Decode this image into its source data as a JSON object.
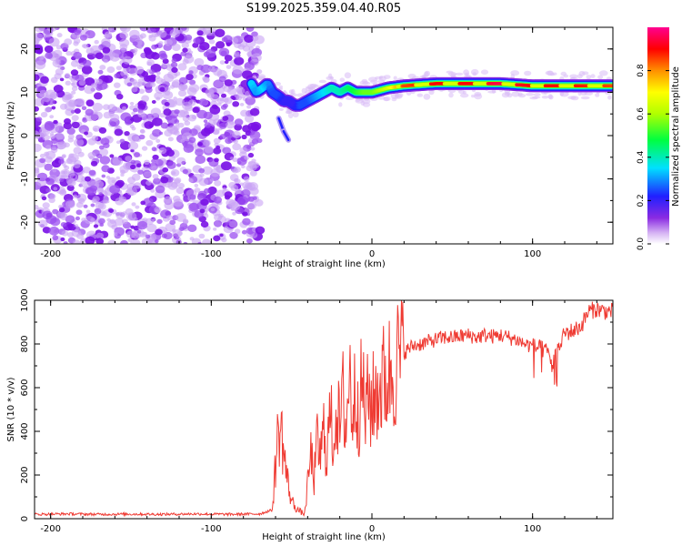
{
  "title": "S199.2025.359.04.40.R05",
  "colors": {
    "snr_line": "#ef3b33",
    "noise_purple": "#8a2be2",
    "axis": "#000000"
  },
  "chart_data": [
    {
      "type": "heatmap",
      "name": "spectrogram",
      "xlabel": "Height of straight line (km)",
      "ylabel": "Frequency (Hz)",
      "xlim": [
        -210,
        150
      ],
      "ylim": [
        -25,
        25
      ],
      "xticks": [
        -200,
        -100,
        0,
        100
      ],
      "xtick_labels": [
        "-200",
        "-100",
        "0",
        "100"
      ],
      "yticks": [
        -20,
        -10,
        0,
        10,
        20
      ],
      "ytick_labels": [
        "-20",
        "-10",
        "0",
        "10",
        "20"
      ],
      "colorbar": {
        "label": "Normalized spectral amplitude",
        "range": [
          0,
          1
        ],
        "ticks": [
          0.0,
          0.2,
          0.4,
          0.6,
          0.8
        ],
        "tick_labels": [
          "0.0",
          "0.2",
          "0.4",
          "0.6",
          "0.8"
        ],
        "colormap": "rainbow (purple-blue-cyan-green-yellow-orange-red-magenta)"
      },
      "noise_region": {
        "x_range": [
          -210,
          -73
        ],
        "amplitude": 0.05
      },
      "ridge": {
        "x": [
          -75,
          -72,
          -68,
          -65,
          -62,
          -58,
          -55,
          -52,
          -48,
          -45,
          -40,
          -35,
          -30,
          -25,
          -20,
          -15,
          -10,
          -5,
          0,
          10,
          20,
          40,
          60,
          80,
          100,
          120,
          150
        ],
        "freq_hz": [
          12,
          10,
          11,
          12,
          10,
          9,
          8,
          8,
          7,
          7,
          8,
          9,
          10,
          11,
          10,
          11,
          10,
          10,
          10,
          11,
          11.5,
          12,
          12,
          12,
          11.5,
          11.5,
          11.5
        ],
        "peak_amplitude": [
          0.35,
          0.3,
          0.35,
          0.3,
          0.25,
          0.25,
          0.2,
          0.2,
          0.2,
          0.25,
          0.25,
          0.3,
          0.35,
          0.4,
          0.4,
          0.45,
          0.5,
          0.55,
          0.55,
          0.65,
          0.85,
          0.9,
          0.9,
          0.95,
          0.9,
          0.9,
          0.85
        ]
      },
      "branch": {
        "x": [
          -58,
          -55,
          -52
        ],
        "freq_hz": [
          4,
          1,
          -1
        ]
      }
    },
    {
      "type": "line",
      "name": "snr",
      "xlabel": "Height of straight line (km)",
      "ylabel": "SNR (10 * v/v)",
      "xlim": [
        -210,
        150
      ],
      "ylim": [
        0,
        1000
      ],
      "xticks": [
        -200,
        -100,
        0,
        100
      ],
      "xtick_labels": [
        "-200",
        "-100",
        "0",
        "100"
      ],
      "yticks": [
        0,
        200,
        400,
        600,
        800,
        1000
      ],
      "ytick_labels": [
        "0",
        "200",
        "400",
        "600",
        "800",
        "1000"
      ],
      "x": [
        -210,
        -190,
        -170,
        -150,
        -130,
        -110,
        -90,
        -70,
        -62,
        -60,
        -58,
        -56,
        -54,
        -52,
        -50,
        -48,
        -46,
        -44,
        -42,
        -40,
        -38,
        -36,
        -34,
        -32,
        -30,
        -28,
        -26,
        -24,
        -22,
        -20,
        -18,
        -16,
        -14,
        -12,
        -10,
        -8,
        -6,
        -4,
        -2,
        0,
        2,
        4,
        6,
        8,
        10,
        12,
        14,
        16,
        18,
        20,
        25,
        30,
        35,
        40,
        45,
        50,
        55,
        60,
        65,
        70,
        75,
        80,
        85,
        90,
        95,
        100,
        105,
        110,
        112,
        115,
        120,
        125,
        130,
        135,
        140,
        145,
        150
      ],
      "values": [
        20,
        22,
        20,
        21,
        20,
        22,
        20,
        22,
        40,
        250,
        420,
        380,
        250,
        150,
        80,
        60,
        40,
        30,
        20,
        150,
        300,
        180,
        350,
        280,
        400,
        300,
        480,
        350,
        520,
        400,
        550,
        420,
        680,
        480,
        600,
        500,
        620,
        480,
        560,
        520,
        560,
        600,
        610,
        640,
        650,
        680,
        700,
        720,
        740,
        760,
        790,
        800,
        810,
        820,
        830,
        830,
        835,
        840,
        830,
        840,
        835,
        840,
        830,
        820,
        800,
        790,
        780,
        760,
        700,
        760,
        850,
        860,
        880,
        950,
        960,
        950,
        950
      ]
    }
  ]
}
